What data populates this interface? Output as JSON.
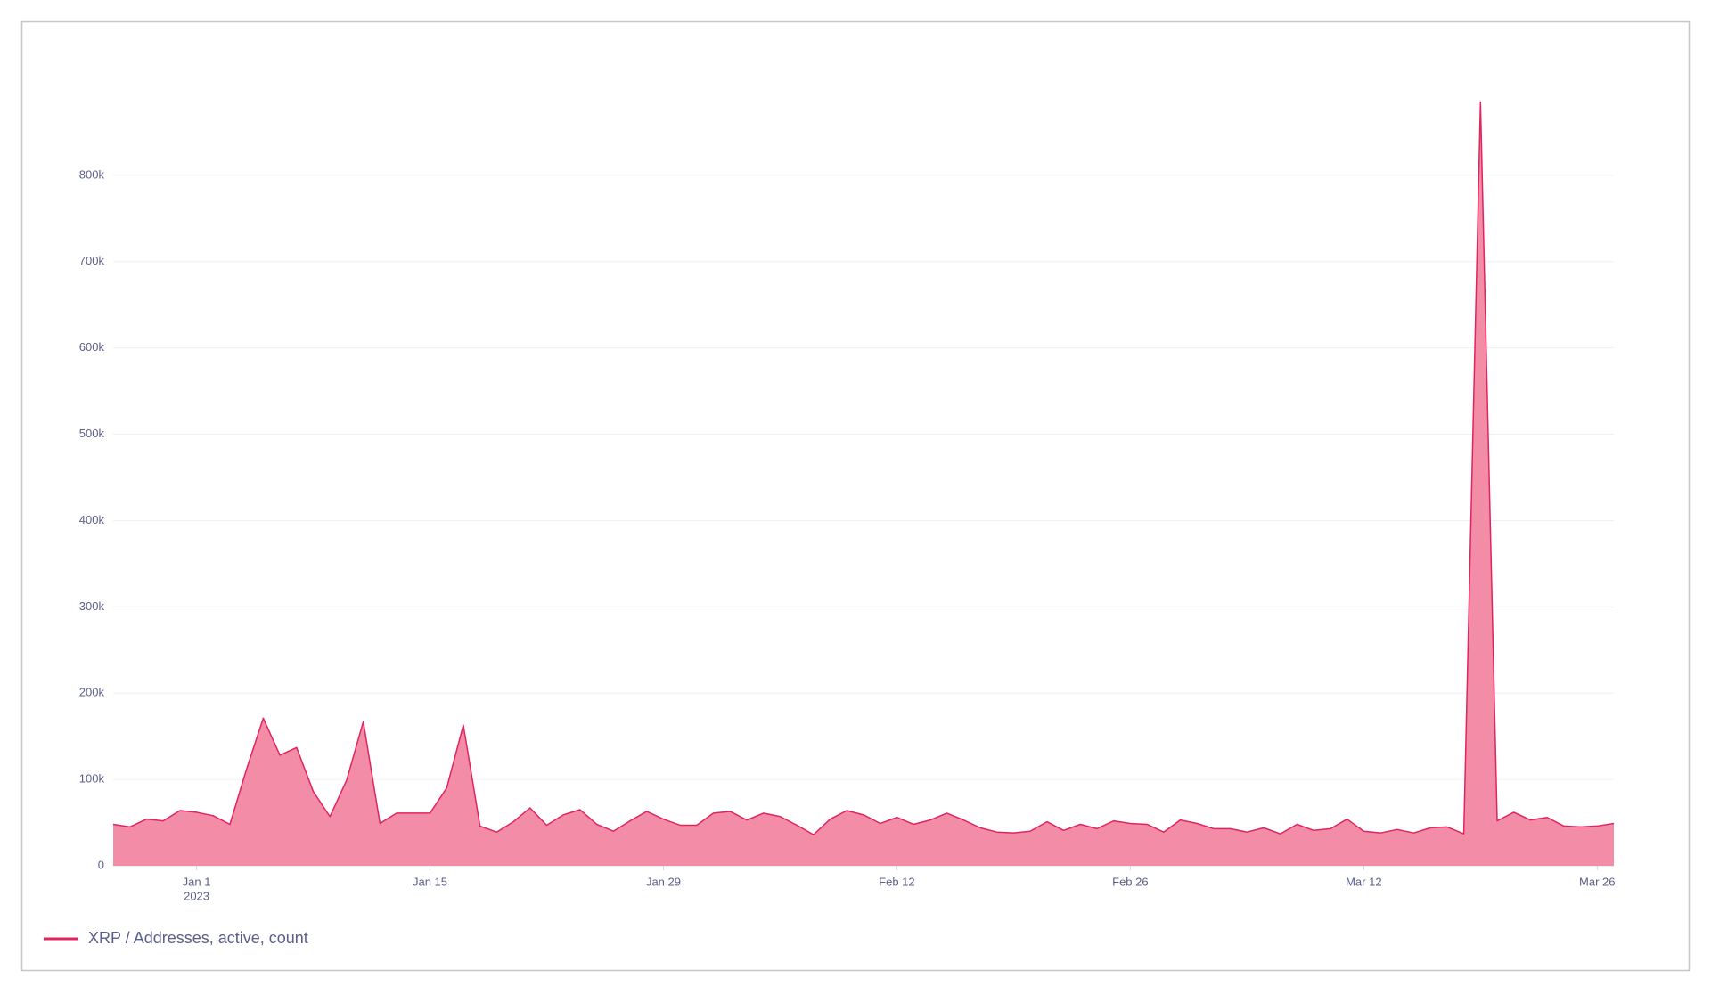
{
  "chart_data": {
    "type": "area",
    "x": [
      "2022-12-27",
      "2022-12-28",
      "2022-12-29",
      "2022-12-30",
      "2022-12-31",
      "2023-01-01",
      "2023-01-02",
      "2023-01-03",
      "2023-01-04",
      "2023-01-05",
      "2023-01-06",
      "2023-01-07",
      "2023-01-08",
      "2023-01-09",
      "2023-01-10",
      "2023-01-11",
      "2023-01-12",
      "2023-01-13",
      "2023-01-14",
      "2023-01-15",
      "2023-01-16",
      "2023-01-17",
      "2023-01-18",
      "2023-01-19",
      "2023-01-20",
      "2023-01-21",
      "2023-01-22",
      "2023-01-23",
      "2023-01-24",
      "2023-01-25",
      "2023-01-26",
      "2023-01-27",
      "2023-01-28",
      "2023-01-29",
      "2023-01-30",
      "2023-01-31",
      "2023-02-01",
      "2023-02-02",
      "2023-02-03",
      "2023-02-04",
      "2023-02-05",
      "2023-02-06",
      "2023-02-07",
      "2023-02-08",
      "2023-02-09",
      "2023-02-10",
      "2023-02-11",
      "2023-02-12",
      "2023-02-13",
      "2023-02-14",
      "2023-02-15",
      "2023-02-16",
      "2023-02-17",
      "2023-02-18",
      "2023-02-19",
      "2023-02-20",
      "2023-02-21",
      "2023-02-22",
      "2023-02-23",
      "2023-02-24",
      "2023-02-25",
      "2023-02-26",
      "2023-02-27",
      "2023-02-28",
      "2023-03-01",
      "2023-03-02",
      "2023-03-03",
      "2023-03-04",
      "2023-03-05",
      "2023-03-06",
      "2023-03-07",
      "2023-03-08",
      "2023-03-09",
      "2023-03-10",
      "2023-03-11",
      "2023-03-12",
      "2023-03-13",
      "2023-03-14",
      "2023-03-15",
      "2023-03-16",
      "2023-03-17",
      "2023-03-18",
      "2023-03-19",
      "2023-03-20",
      "2023-03-21",
      "2023-03-22",
      "2023-03-23",
      "2023-03-24",
      "2023-03-25",
      "2023-03-26",
      "2023-03-27"
    ],
    "series": [
      {
        "name": "XRP / Addresses, active, count",
        "color": "#e0245e",
        "fill": "#f38ca6",
        "values": [
          48000,
          45000,
          54000,
          52000,
          64000,
          62000,
          58000,
          48000,
          112000,
          171000,
          128000,
          137000,
          86000,
          57000,
          99000,
          167000,
          49000,
          61000,
          61000,
          61000,
          90000,
          163000,
          46000,
          39000,
          51000,
          67000,
          47000,
          59000,
          65000,
          48000,
          40000,
          52000,
          63000,
          54000,
          47000,
          47000,
          61000,
          63000,
          53000,
          61000,
          57000,
          47000,
          36000,
          54000,
          64000,
          59000,
          49000,
          56000,
          48000,
          53000,
          61000,
          53000,
          44000,
          39000,
          38000,
          40000,
          51000,
          41000,
          48000,
          43000,
          52000,
          49000,
          48000,
          39000,
          53000,
          49000,
          43000,
          43000,
          39000,
          44000,
          37000,
          48000,
          41000,
          43000,
          54000,
          40000,
          38000,
          42000,
          38000,
          44000,
          45000,
          37000,
          885000,
          52000,
          62000,
          53000,
          56000,
          46000,
          45000,
          46000,
          49000
        ]
      }
    ],
    "xlim": [
      "2022-12-27",
      "2023-03-27"
    ],
    "xticks": [
      {
        "value": "2023-01-01",
        "label": "Jan 1",
        "sublabel": "2023"
      },
      {
        "value": "2023-01-15",
        "label": "Jan 15"
      },
      {
        "value": "2023-01-29",
        "label": "Jan 29"
      },
      {
        "value": "2023-02-12",
        "label": "Feb 12"
      },
      {
        "value": "2023-02-26",
        "label": "Feb 26"
      },
      {
        "value": "2023-03-12",
        "label": "Mar 12"
      },
      {
        "value": "2023-03-26",
        "label": "Mar 26"
      }
    ],
    "ylim": [
      0,
      900000
    ],
    "yticks": [
      0,
      {
        "value": 100000,
        "label": "100k"
      },
      {
        "value": 200000,
        "label": "200k"
      },
      {
        "value": 300000,
        "label": "300k"
      },
      {
        "value": 400000,
        "label": "400k"
      },
      {
        "value": 500000,
        "label": "500k"
      },
      {
        "value": 600000,
        "label": "600k"
      },
      {
        "value": 700000,
        "label": "700k"
      },
      {
        "value": 800000,
        "label": "800k"
      }
    ],
    "grid": true,
    "legend": "bottom-left"
  }
}
